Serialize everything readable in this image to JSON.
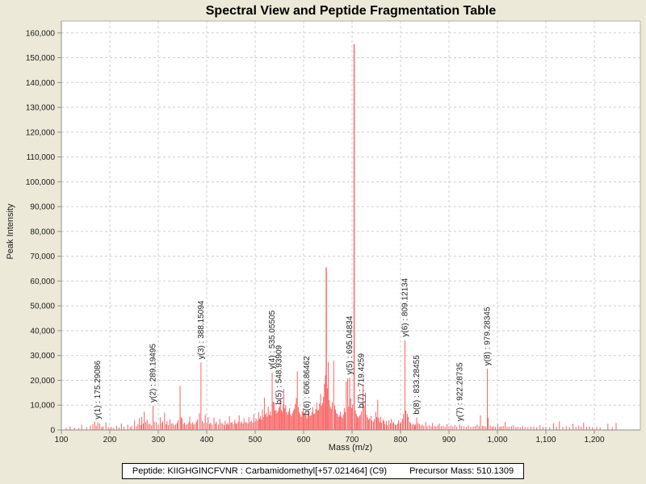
{
  "header": {
    "title": "Spectral View and Peptide Fragmentation Table"
  },
  "footer": {
    "peptide_label": "Peptide: KIIGHGINCFVNR : Carbamidomethyl[+57.021464] (C9)",
    "precursor_label": "Precursor Mass: 510.1309"
  },
  "chart_data": {
    "type": "bar",
    "title": "Spectral View and Peptide Fragmentation Table",
    "xlabel": "Mass (m/z)",
    "ylabel": "Peak Intensity",
    "xlim": [
      100,
      1295
    ],
    "ylim": [
      0,
      164800
    ],
    "grid": true,
    "legend": "none",
    "colors": {
      "background": "#ece9d8",
      "plot_background": "#ffffff",
      "peak": "#fa6060",
      "grid": "#cfcfcf",
      "axis": "#8f8f8f",
      "frame": "#b3afa4",
      "text": "#1a1a1a"
    },
    "x_ticks": [
      [
        100,
        "100"
      ],
      [
        200,
        "200"
      ],
      [
        300,
        "300"
      ],
      [
        400,
        "400"
      ],
      [
        500,
        "500"
      ],
      [
        600,
        "600"
      ],
      [
        700,
        "700"
      ],
      [
        800,
        "800"
      ],
      [
        900,
        "900"
      ],
      [
        1000,
        "1,000"
      ],
      [
        1100,
        "1,100"
      ],
      [
        1200,
        "1,200"
      ]
    ],
    "y_ticks": [
      [
        0,
        "0"
      ],
      [
        10000,
        "10,000"
      ],
      [
        20000,
        "20,000"
      ],
      [
        30000,
        "30,000"
      ],
      [
        40000,
        "40,000"
      ],
      [
        50000,
        "50,000"
      ],
      [
        60000,
        "60,000"
      ],
      [
        70000,
        "70,000"
      ],
      [
        80000,
        "80,000"
      ],
      [
        90000,
        "90,000"
      ],
      [
        100000,
        "100,000"
      ],
      [
        110000,
        "110,000"
      ],
      [
        120000,
        "120,000"
      ],
      [
        130000,
        "130,000"
      ],
      [
        140000,
        "140,000"
      ],
      [
        150000,
        "150,000"
      ],
      [
        160000,
        "160,000"
      ]
    ],
    "annotated_peaks": [
      {
        "label": "y(1) : 175.29086",
        "mz": 175.29086,
        "intensity": 3000
      },
      {
        "label": "y(2) : 289.19495",
        "mz": 289.19495,
        "intensity": 9800
      },
      {
        "label": "y(3) : 388.15094",
        "mz": 388.15094,
        "intensity": 27200
      },
      {
        "label": "y(4) : 535.05505",
        "mz": 535.05505,
        "intensity": 23200
      },
      {
        "label": "b(5) : 548.93909",
        "mz": 548.93909,
        "intensity": 9000
      },
      {
        "label": "b(6) : 606.86462",
        "mz": 606.86462,
        "intensity": 4600
      },
      {
        "label": "y(5) : 695.04834",
        "mz": 695.04834,
        "intensity": 21000
      },
      {
        "label": "b(7) : 719.4259",
        "mz": 719.4259,
        "intensity": 7500
      },
      {
        "label": "y(6) : 809.12134",
        "mz": 809.12134,
        "intensity": 36200
      },
      {
        "label": "b(8) : 833.28455",
        "mz": 833.28455,
        "intensity": 5000
      },
      {
        "label": "y(7) : 922.28735",
        "mz": 922.28735,
        "intensity": 2200
      },
      {
        "label": "y(8) : 979.28345",
        "mz": 979.28345,
        "intensity": 24600
      }
    ],
    "peaks": [
      [
        110,
        800
      ],
      [
        118,
        1500
      ],
      [
        127,
        950
      ],
      [
        136,
        700
      ],
      [
        142,
        2100
      ],
      [
        152,
        1250
      ],
      [
        160,
        1800
      ],
      [
        165,
        2400
      ],
      [
        169,
        3400
      ],
      [
        172,
        1600
      ],
      [
        179,
        2600
      ],
      [
        183,
        1200
      ],
      [
        186,
        1500
      ],
      [
        192,
        3000
      ],
      [
        197,
        1100
      ],
      [
        203,
        1200
      ],
      [
        208,
        900
      ],
      [
        214,
        1700
      ],
      [
        219,
        1000
      ],
      [
        224,
        2600
      ],
      [
        229,
        1300
      ],
      [
        237,
        2100
      ],
      [
        242,
        1100
      ],
      [
        245,
        1600
      ],
      [
        251,
        3800
      ],
      [
        255,
        1500
      ],
      [
        258,
        2200
      ],
      [
        261,
        4800
      ],
      [
        264,
        2000
      ],
      [
        266,
        5300
      ],
      [
        269,
        2600
      ],
      [
        271,
        7400
      ],
      [
        274,
        3200
      ],
      [
        277,
        4100
      ],
      [
        280,
        2400
      ],
      [
        283,
        2500
      ],
      [
        286,
        1800
      ],
      [
        292,
        3300
      ],
      [
        296,
        3200
      ],
      [
        300,
        2100
      ],
      [
        304,
        5100
      ],
      [
        307,
        2800
      ],
      [
        309,
        3500
      ],
      [
        313,
        7000
      ],
      [
        316,
        2300
      ],
      [
        318,
        3600
      ],
      [
        321,
        2000
      ],
      [
        324,
        4300
      ],
      [
        327,
        2600
      ],
      [
        330,
        2700
      ],
      [
        333,
        1900
      ],
      [
        336,
        2200
      ],
      [
        339,
        2800
      ],
      [
        341,
        3900
      ],
      [
        345,
        17800
      ],
      [
        347,
        5200
      ],
      [
        349,
        4600
      ],
      [
        352,
        2400
      ],
      [
        354,
        2900
      ],
      [
        357,
        2100
      ],
      [
        360,
        2300
      ],
      [
        363,
        3100
      ],
      [
        365,
        5400
      ],
      [
        368,
        2600
      ],
      [
        371,
        3100
      ],
      [
        373,
        2200
      ],
      [
        376,
        2500
      ],
      [
        379,
        3400
      ],
      [
        381,
        4200
      ],
      [
        385,
        6800
      ],
      [
        391,
        3600
      ],
      [
        394,
        2700
      ],
      [
        397,
        6100
      ],
      [
        400,
        3000
      ],
      [
        403,
        5200
      ],
      [
        406,
        2400
      ],
      [
        408,
        2900
      ],
      [
        411,
        2100
      ],
      [
        415,
        5000
      ],
      [
        418,
        2600
      ],
      [
        420,
        3300
      ],
      [
        424,
        2200
      ],
      [
        427,
        4400
      ],
      [
        430,
        2800
      ],
      [
        433,
        2600
      ],
      [
        436,
        1900
      ],
      [
        438,
        3700
      ],
      [
        441,
        2300
      ],
      [
        443,
        2800
      ],
      [
        445,
        2100
      ],
      [
        447,
        5600
      ],
      [
        450,
        2900
      ],
      [
        452,
        3200
      ],
      [
        455,
        2400
      ],
      [
        458,
        4100
      ],
      [
        460,
        2700
      ],
      [
        462,
        2500
      ],
      [
        465,
        3300
      ],
      [
        467,
        5900
      ],
      [
        470,
        2800
      ],
      [
        472,
        3400
      ],
      [
        475,
        2600
      ],
      [
        477,
        4700
      ],
      [
        480,
        3100
      ],
      [
        482,
        3000
      ],
      [
        485,
        2500
      ],
      [
        487,
        5200
      ],
      [
        490,
        3300
      ],
      [
        492,
        3800
      ],
      [
        495,
        2900
      ],
      [
        497,
        6400
      ],
      [
        500,
        3500
      ],
      [
        502,
        4500
      ],
      [
        505,
        3800
      ],
      [
        507,
        7200
      ],
      [
        509,
        4600
      ],
      [
        511,
        5500
      ],
      [
        513,
        4200
      ],
      [
        515,
        8300
      ],
      [
        517,
        5100
      ],
      [
        519,
        13000
      ],
      [
        521,
        6200
      ],
      [
        523,
        6800
      ],
      [
        525,
        5400
      ],
      [
        527,
        9400
      ],
      [
        529,
        6100
      ],
      [
        531,
        7600
      ],
      [
        533,
        5800
      ],
      [
        537,
        11400
      ],
      [
        539,
        11200
      ],
      [
        541,
        7800
      ],
      [
        543,
        8100
      ],
      [
        545,
        6900
      ],
      [
        547,
        7700
      ],
      [
        551,
        9600
      ],
      [
        552,
        12400
      ],
      [
        554,
        8200
      ],
      [
        556,
        7300
      ],
      [
        558,
        10400
      ],
      [
        559,
        16500
      ],
      [
        561,
        8800
      ],
      [
        563,
        9800
      ],
      [
        565,
        7100
      ],
      [
        567,
        6200
      ],
      [
        569,
        7500
      ],
      [
        571,
        8800
      ],
      [
        573,
        6400
      ],
      [
        575,
        5600
      ],
      [
        577,
        6800
      ],
      [
        579,
        7900
      ],
      [
        581,
        8600
      ],
      [
        583,
        10400
      ],
      [
        585,
        12800
      ],
      [
        587,
        23600
      ],
      [
        589,
        9200
      ],
      [
        591,
        7100
      ],
      [
        593,
        6300
      ],
      [
        595,
        5300
      ],
      [
        597,
        7400
      ],
      [
        599,
        8500
      ],
      [
        601,
        6900
      ],
      [
        603,
        6400
      ],
      [
        605,
        5800
      ],
      [
        609,
        6600
      ],
      [
        611,
        7800
      ],
      [
        613,
        5700
      ],
      [
        615,
        5900
      ],
      [
        617,
        7200
      ],
      [
        619,
        9200
      ],
      [
        621,
        6400
      ],
      [
        623,
        6600
      ],
      [
        625,
        8400
      ],
      [
        627,
        11000
      ],
      [
        629,
        7800
      ],
      [
        631,
        8200
      ],
      [
        633,
        10600
      ],
      [
        635,
        14500
      ],
      [
        637,
        9800
      ],
      [
        639,
        10800
      ],
      [
        641,
        13400
      ],
      [
        643,
        18700
      ],
      [
        645,
        22000
      ],
      [
        646.8,
        65500
      ],
      [
        649,
        16800
      ],
      [
        651,
        27300
      ],
      [
        653,
        12000
      ],
      [
        655,
        9400
      ],
      [
        657,
        8500
      ],
      [
        659,
        11200
      ],
      [
        662,
        28000
      ],
      [
        664,
        9700
      ],
      [
        666,
        8200
      ],
      [
        668,
        6800
      ],
      [
        670,
        6300
      ],
      [
        672,
        5200
      ],
      [
        674,
        5800
      ],
      [
        676,
        7400
      ],
      [
        678,
        5400
      ],
      [
        680,
        4800
      ],
      [
        682,
        6200
      ],
      [
        684,
        8900
      ],
      [
        686,
        7200
      ],
      [
        688,
        19500
      ],
      [
        691,
        20800
      ],
      [
        693,
        9400
      ],
      [
        697,
        12600
      ],
      [
        699,
        8800
      ],
      [
        701,
        10200
      ],
      [
        704.3,
        155400
      ],
      [
        707,
        7800
      ],
      [
        709,
        6400
      ],
      [
        711,
        5400
      ],
      [
        713,
        4800
      ],
      [
        715,
        5600
      ],
      [
        717,
        6200
      ],
      [
        722.6,
        18300
      ],
      [
        725,
        9600
      ],
      [
        727.5,
        15000
      ],
      [
        730,
        6200
      ],
      [
        732,
        5100
      ],
      [
        734,
        4100
      ],
      [
        736,
        4600
      ],
      [
        739,
        5600
      ],
      [
        741,
        3800
      ],
      [
        744,
        3400
      ],
      [
        746,
        4400
      ],
      [
        749,
        7200
      ],
      [
        751,
        5200
      ],
      [
        753,
        12200
      ],
      [
        755,
        4800
      ],
      [
        757,
        3100
      ],
      [
        759,
        5300
      ],
      [
        761,
        2800
      ],
      [
        764,
        4200
      ],
      [
        766,
        3600
      ],
      [
        768,
        2400
      ],
      [
        771,
        3600
      ],
      [
        773,
        2000
      ],
      [
        776,
        3900
      ],
      [
        779,
        2600
      ],
      [
        781,
        4400
      ],
      [
        784,
        2800
      ],
      [
        786,
        3200
      ],
      [
        789,
        2200
      ],
      [
        791,
        2000
      ],
      [
        794,
        2600
      ],
      [
        796,
        3900
      ],
      [
        799,
        2600
      ],
      [
        801,
        3200
      ],
      [
        804,
        4400
      ],
      [
        806,
        6500
      ],
      [
        811,
        7800
      ],
      [
        814,
        6500
      ],
      [
        816,
        5200
      ],
      [
        819,
        3300
      ],
      [
        821,
        2700
      ],
      [
        824,
        2100
      ],
      [
        827,
        2500
      ],
      [
        829,
        1800
      ],
      [
        831,
        2200
      ],
      [
        836,
        2800
      ],
      [
        839,
        2500
      ],
      [
        842,
        1800
      ],
      [
        845,
        2200
      ],
      [
        848,
        1600
      ],
      [
        852,
        3200
      ],
      [
        855,
        1500
      ],
      [
        859,
        1900
      ],
      [
        863,
        1400
      ],
      [
        866,
        2800
      ],
      [
        870,
        1600
      ],
      [
        873,
        1400
      ],
      [
        877,
        1800
      ],
      [
        880,
        2600
      ],
      [
        884,
        1500
      ],
      [
        888,
        1700
      ],
      [
        892,
        1300
      ],
      [
        896,
        2300
      ],
      [
        900,
        1500
      ],
      [
        904,
        1800
      ],
      [
        908,
        1400
      ],
      [
        912,
        2000
      ],
      [
        916,
        1300
      ],
      [
        926,
        1600
      ],
      [
        931,
        1400
      ],
      [
        936,
        1200
      ],
      [
        940,
        1800
      ],
      [
        945,
        1300
      ],
      [
        950,
        1400
      ],
      [
        954,
        1600
      ],
      [
        958,
        2100
      ],
      [
        962,
        1500
      ],
      [
        965,
        5900
      ],
      [
        969,
        1700
      ],
      [
        972,
        1600
      ],
      [
        976,
        1400
      ],
      [
        981,
        4900
      ],
      [
        985,
        1800
      ],
      [
        989,
        1300
      ],
      [
        992,
        1500
      ],
      [
        996,
        1200
      ],
      [
        1001,
        2200
      ],
      [
        1005,
        1300
      ],
      [
        1008,
        1400
      ],
      [
        1012,
        1600
      ],
      [
        1016,
        3200
      ],
      [
        1020,
        1400
      ],
      [
        1024,
        1300
      ],
      [
        1029,
        1500
      ],
      [
        1033,
        1900
      ],
      [
        1038,
        1200
      ],
      [
        1042,
        1300
      ],
      [
        1047,
        1100
      ],
      [
        1052,
        1600
      ],
      [
        1057,
        1200
      ],
      [
        1063,
        1100
      ],
      [
        1069,
        1300
      ],
      [
        1075,
        1400
      ],
      [
        1081,
        1100
      ],
      [
        1088,
        1900
      ],
      [
        1094,
        1200
      ],
      [
        1100,
        1300
      ],
      [
        1108,
        1100
      ],
      [
        1116,
        2800
      ],
      [
        1122,
        1400
      ],
      [
        1128,
        3500
      ],
      [
        1135,
        1200
      ],
      [
        1142,
        1500
      ],
      [
        1149,
        1100
      ],
      [
        1156,
        2500
      ],
      [
        1162,
        1300
      ],
      [
        1168,
        1800
      ],
      [
        1173,
        1200
      ],
      [
        1178,
        3000
      ],
      [
        1184,
        1300
      ],
      [
        1190,
        1400
      ],
      [
        1196,
        1100
      ],
      [
        1205,
        1200
      ],
      [
        1212,
        1000
      ],
      [
        1228,
        2500
      ],
      [
        1237,
        1100
      ],
      [
        1245,
        2800
      ]
    ]
  }
}
